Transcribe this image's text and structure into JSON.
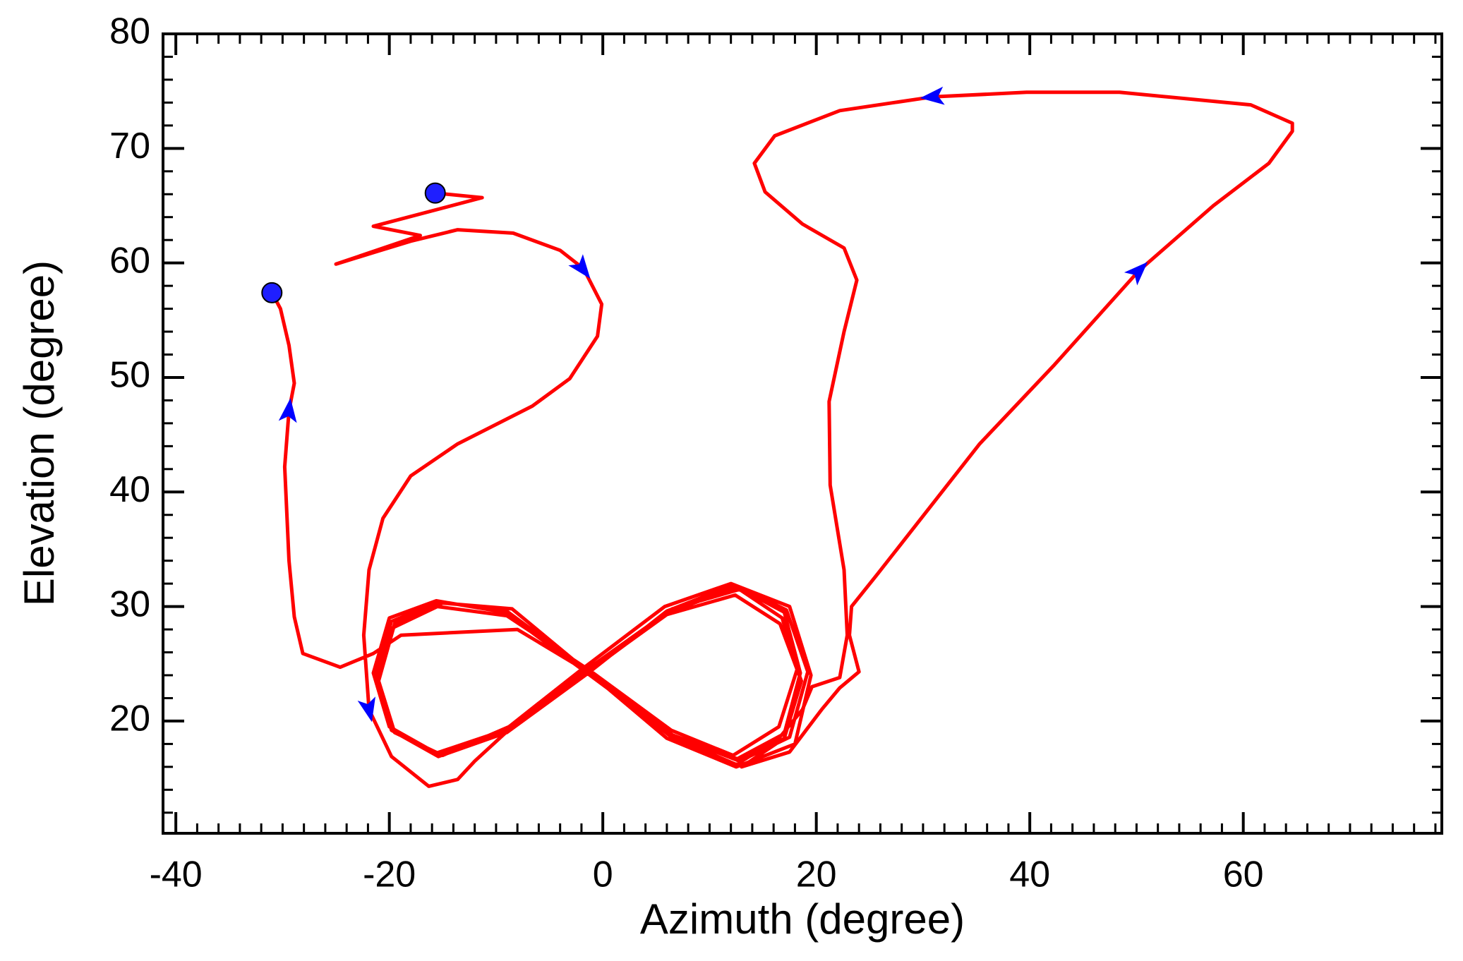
{
  "chart_data": {
    "type": "line",
    "xlabel": "Azimuth (degree)",
    "ylabel": "Elevation (degree)",
    "xlim": [
      -41.2,
      78.6
    ],
    "ylim": [
      10.2,
      80
    ],
    "xticks": [
      -40,
      -20,
      0,
      20,
      40,
      60
    ],
    "yticks": [
      20,
      30,
      40,
      50,
      60,
      70,
      80
    ],
    "series": [
      {
        "color": "#ff0000",
        "x": [
          -15.7,
          -11.3,
          -21.5,
          -17.1,
          -25.0,
          -21.5,
          -18.0,
          -13.6,
          -8.4,
          -4.0,
          -1.8,
          -0.1,
          -0.5,
          -3.1,
          -6.6,
          -13.6,
          -18.0,
          -20.6,
          -21.9,
          -22.4,
          -21.9,
          -19.8,
          -16.3,
          -13.6,
          -12.0,
          -9.2,
          -1.5,
          6.2,
          12.6,
          17.0,
          18.5,
          17.0,
          12.6,
          6.2,
          -1.5,
          -9.2,
          -15.6,
          -20.0,
          -21.5,
          -20.0,
          -15.6,
          -9.2,
          -2.0,
          5.8,
          12.0,
          17.5,
          19.5,
          18.0,
          12.5,
          6.0,
          -1.0,
          -8.5,
          -15.0,
          -19.5,
          -21.0,
          -19.5,
          -15.0,
          -8.8,
          -1.8,
          6.5,
          12.8,
          16.8,
          18.2,
          16.5,
          12.2,
          6.4,
          -1.2,
          -9.0,
          -15.5,
          -20.0,
          -21.2,
          -19.8,
          -15.3,
          -9.0,
          -1.6,
          6.0,
          12.4,
          16.6,
          18.6,
          17.0,
          13.0,
          17.5,
          20.5,
          22.2,
          24.0,
          23.1,
          23.3,
          25.7,
          35.3,
          42.3,
          50.2,
          57.2,
          62.4,
          64.6,
          64.6,
          60.7,
          48.4,
          39.7,
          30.9,
          22.2,
          16.1,
          14.2,
          15.2,
          18.7,
          22.6,
          23.8,
          22.6,
          21.2,
          21.3,
          22.6,
          22.9,
          22.2,
          19.6,
          18.7,
          16.5,
          12.5,
          6.3,
          -1.3,
          -9.0,
          -15.3,
          -19.8,
          -21.3,
          -19.8,
          -15.4,
          -9.0,
          -1.5,
          6.0,
          12.3,
          17.2,
          19.2,
          17.5,
          12.8,
          6.5,
          -1.4,
          -8.0,
          -18.9,
          -21.5,
          -24.6,
          -28.1,
          -28.9,
          -29.4,
          -29.8,
          -29.4,
          -28.9,
          -29.4,
          -30.2,
          -31.0
        ],
        "y": [
          66.1,
          65.7,
          63.2,
          62.4,
          59.9,
          60.9,
          61.9,
          62.9,
          62.6,
          61.1,
          59.5,
          56.4,
          53.6,
          49.9,
          47.5,
          44.2,
          41.4,
          37.7,
          33.2,
          27.5,
          21.0,
          16.9,
          14.3,
          14.9,
          16.5,
          18.9,
          24.2,
          29.5,
          31.7,
          29.5,
          24.2,
          18.9,
          16.7,
          18.9,
          24.2,
          29.5,
          30.5,
          29.0,
          24.2,
          19.5,
          17.2,
          19.2,
          24.5,
          30.0,
          32.0,
          30.0,
          24.0,
          18.0,
          16.0,
          18.5,
          24.0,
          29.8,
          30.3,
          28.5,
          23.5,
          19.0,
          17.0,
          19.5,
          24.3,
          29.8,
          31.5,
          29.0,
          24.5,
          19.5,
          17.0,
          19.2,
          24.4,
          29.2,
          30.0,
          28.0,
          23.8,
          19.3,
          17.0,
          19.3,
          24.2,
          29.3,
          31.0,
          28.5,
          23.5,
          18.5,
          16.0,
          17.3,
          21.0,
          22.9,
          24.3,
          27.5,
          30.0,
          32.8,
          44.2,
          51.1,
          59.3,
          65.0,
          68.7,
          71.5,
          72.2,
          73.8,
          74.9,
          74.9,
          74.5,
          73.3,
          71.1,
          68.7,
          66.2,
          63.4,
          61.3,
          58.5,
          54.0,
          47.9,
          40.6,
          33.2,
          27.5,
          23.8,
          23.0,
          21.0,
          18.5,
          16.2,
          18.7,
          24.3,
          29.6,
          30.4,
          28.7,
          24.0,
          19.2,
          16.9,
          19.0,
          24.1,
          29.6,
          31.9,
          29.7,
          24.3,
          18.6,
          16.5,
          18.8,
          24.3,
          28.0,
          27.5,
          25.9,
          24.7,
          25.9,
          29.1,
          34.0,
          42.2,
          47.1,
          49.5,
          52.8,
          56.0,
          57.4
        ]
      }
    ],
    "markers": {
      "color": "#1f1fff",
      "x": [
        -15.7,
        -31.0
      ],
      "y": [
        66.1,
        57.4
      ]
    },
    "arrows": {
      "color": "#0000ff",
      "x": [
        -1.9,
        -21.9,
        50.2,
        30.9,
        -29.4
      ],
      "y": [
        59.5,
        21.0,
        59.3,
        74.5,
        47.1
      ]
    }
  }
}
